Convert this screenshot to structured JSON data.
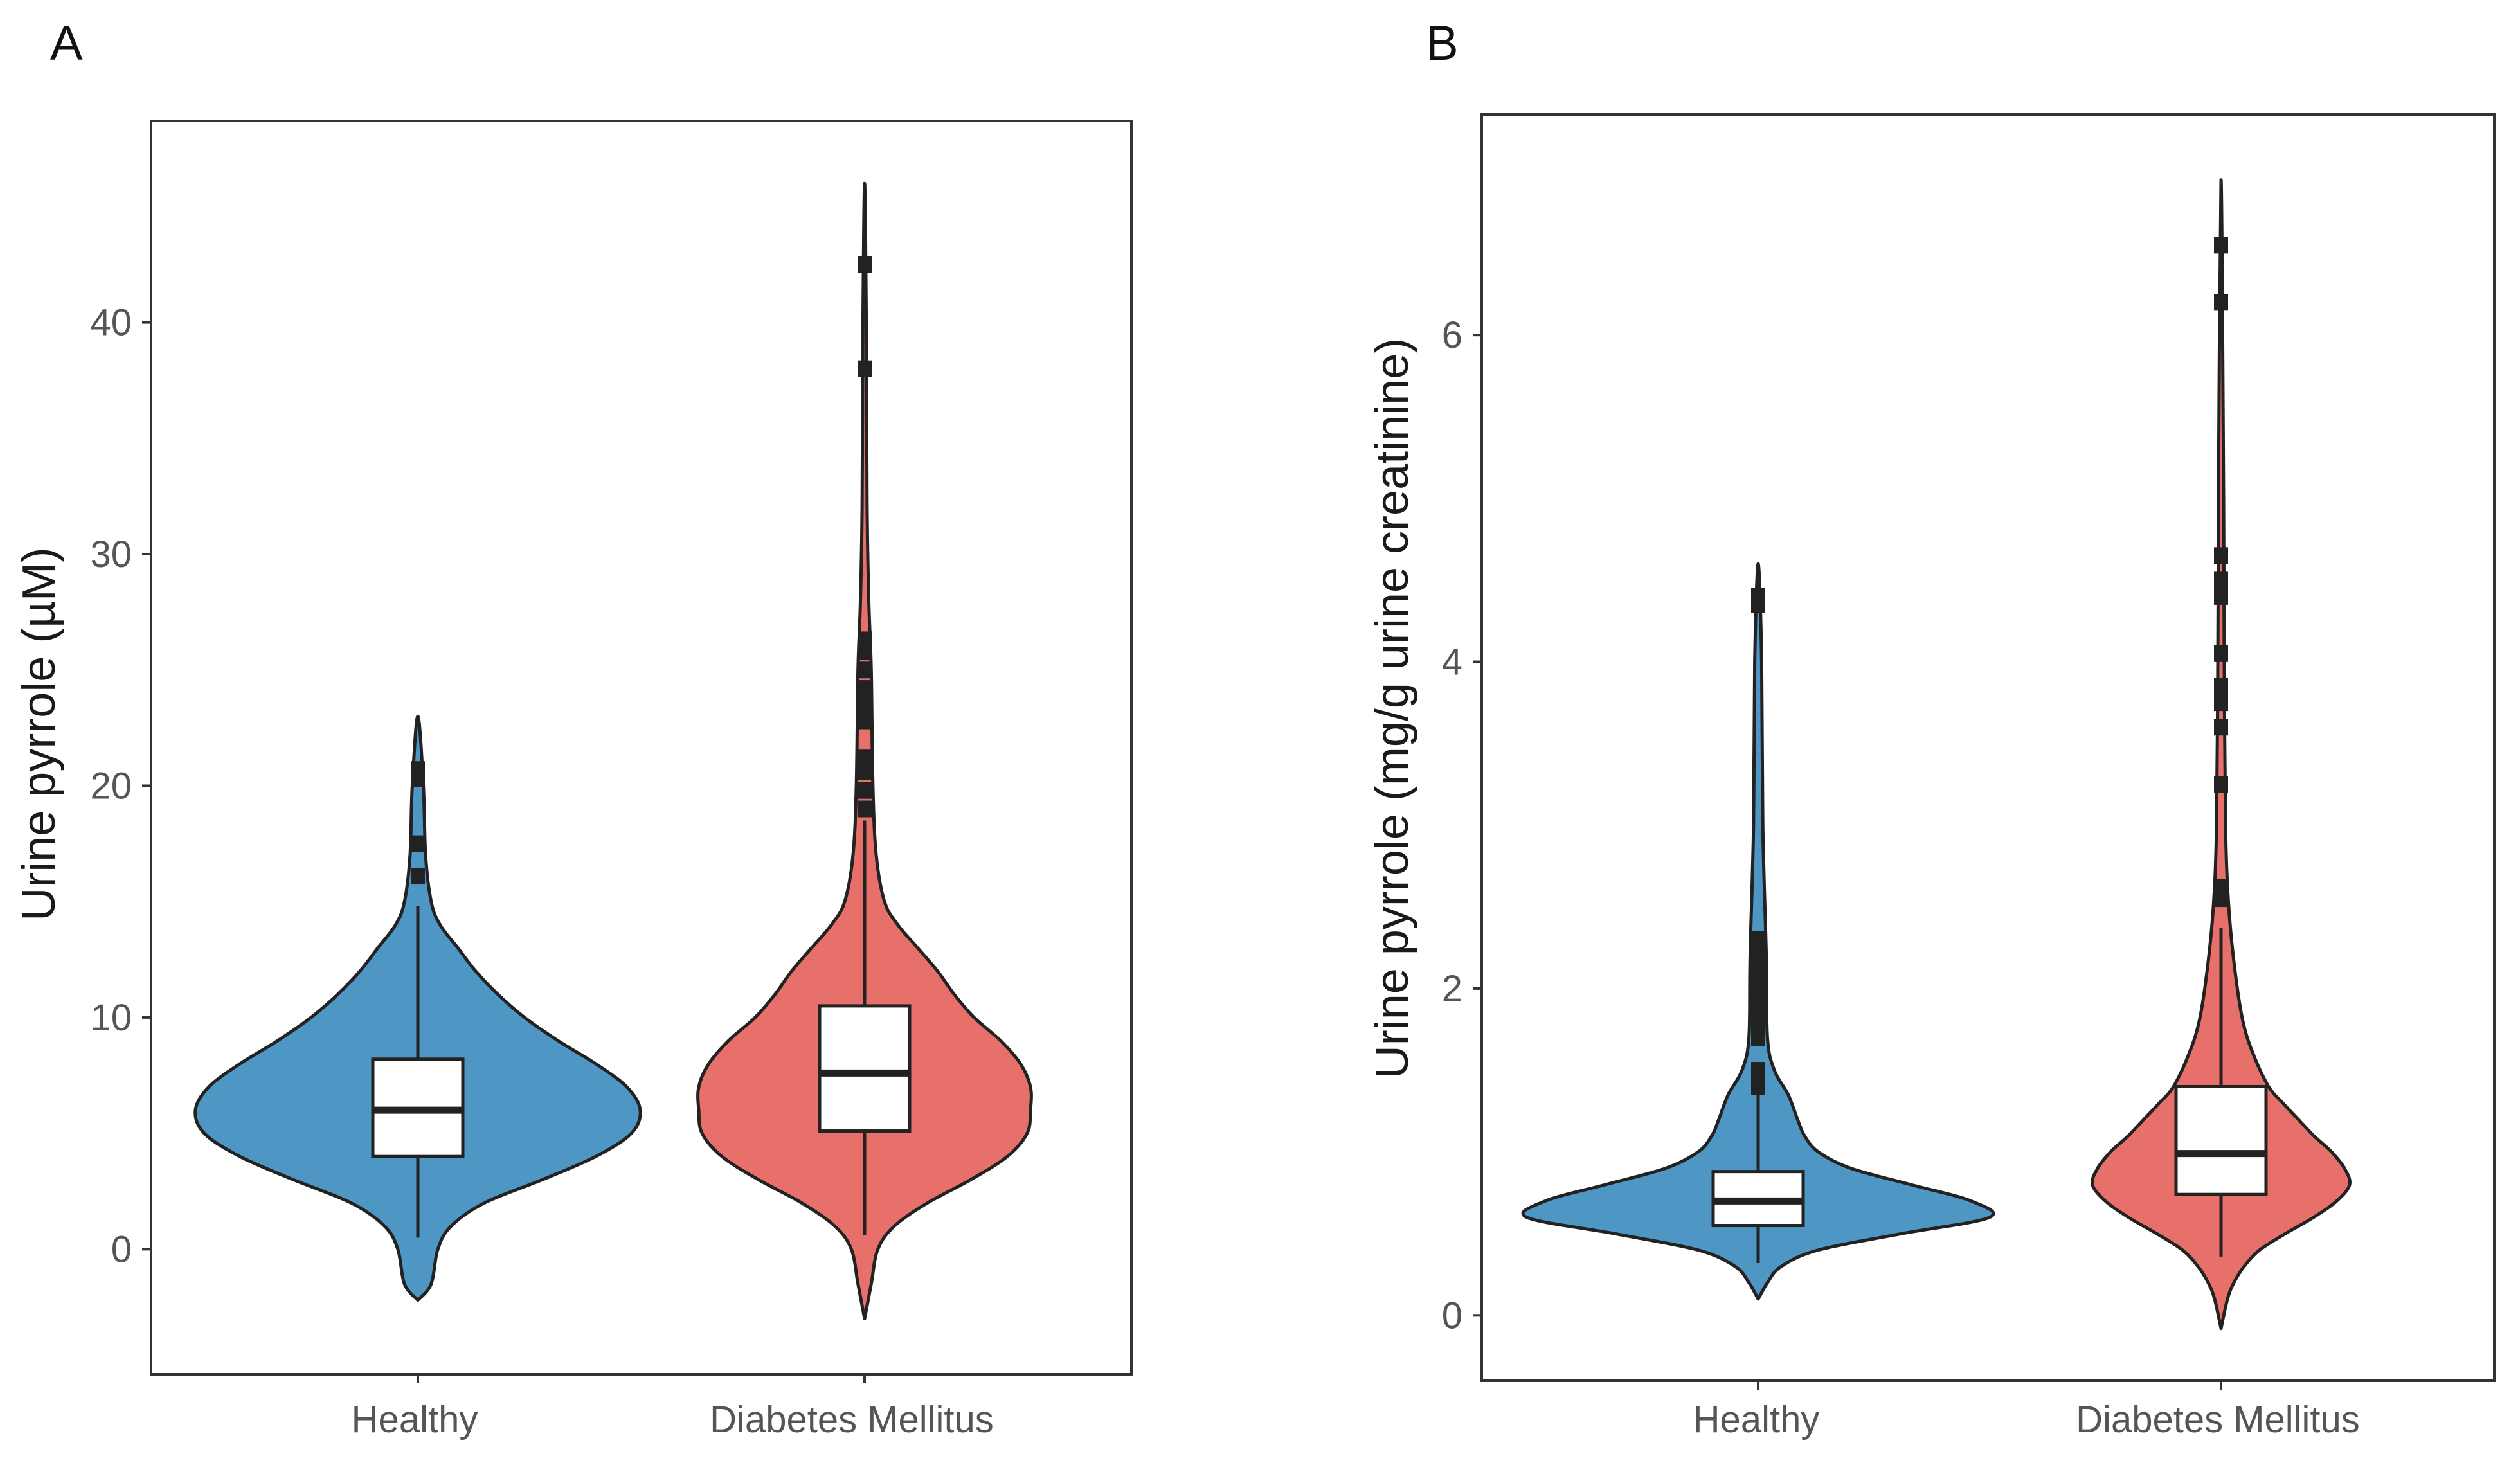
{
  "colors": {
    "healthy": "#4e96c3",
    "diabetes": "#e8706a",
    "outline": "#222222",
    "box_fill": "#ffffff"
  },
  "chart_data": [
    {
      "type": "violin",
      "panel_label": "A",
      "ylabel": "Urine pyrrole (µM)",
      "xlabel": "",
      "ylim": [
        -5.4,
        48.7
      ],
      "yticks": [
        0,
        10,
        20,
        30,
        40
      ],
      "ytick_labels": [
        "0",
        "10",
        "20",
        "30",
        "40"
      ],
      "categories": [
        "Healthy",
        "Diabetes Mellitus"
      ],
      "series": [
        {
          "name": "Healthy",
          "color": "#4e96c3",
          "min": -2.2,
          "max": 23.0,
          "density": [
            [
              -2.2,
              0.0
            ],
            [
              -1.5,
              0.06
            ],
            [
              0,
              0.09
            ],
            [
              1,
              0.15
            ],
            [
              2,
              0.3
            ],
            [
              3,
              0.56
            ],
            [
              4,
              0.8
            ],
            [
              5,
              0.96
            ],
            [
              6,
              1.0
            ],
            [
              7,
              0.94
            ],
            [
              8,
              0.8
            ],
            [
              9,
              0.63
            ],
            [
              10,
              0.48
            ],
            [
              11,
              0.36
            ],
            [
              12,
              0.26
            ],
            [
              13,
              0.18
            ],
            [
              14,
              0.1
            ],
            [
              15,
              0.06
            ],
            [
              17,
              0.035
            ],
            [
              20,
              0.025
            ],
            [
              23,
              0.0
            ]
          ],
          "box": {
            "q1": 4.0,
            "median": 6.0,
            "q3": 8.2,
            "whisker_low": 0.5,
            "whisker_high": 14.8
          },
          "outliers": [
            16.1,
            17.5,
            20.3,
            20.7
          ]
        },
        {
          "name": "Diabetes Mellitus",
          "color": "#e8706a",
          "min": -3.0,
          "max": 46.0,
          "density": [
            [
              -3,
              0.0
            ],
            [
              -1.5,
              0.04
            ],
            [
              0,
              0.08
            ],
            [
              1,
              0.18
            ],
            [
              2,
              0.38
            ],
            [
              3,
              0.64
            ],
            [
              4,
              0.86
            ],
            [
              5,
              0.98
            ],
            [
              6,
              1.0
            ],
            [
              7,
              1.0
            ],
            [
              8,
              0.94
            ],
            [
              9,
              0.82
            ],
            [
              10,
              0.66
            ],
            [
              11,
              0.54
            ],
            [
              12,
              0.44
            ],
            [
              13,
              0.32
            ],
            [
              14,
              0.2
            ],
            [
              15,
              0.12
            ],
            [
              17,
              0.07
            ],
            [
              20,
              0.05
            ],
            [
              25,
              0.04
            ],
            [
              28,
              0.025
            ],
            [
              32,
              0.015
            ],
            [
              40,
              0.01
            ],
            [
              46,
              0.0
            ]
          ],
          "box": {
            "q1": 5.1,
            "median": 7.6,
            "q3": 10.5,
            "whisker_low": 0.6,
            "whisker_high": 18.5
          },
          "outliers": [
            19.0,
            19.8,
            20.6,
            21.2,
            22.8,
            23.5,
            24.2,
            25.0,
            25.8,
            26.3,
            38.0,
            42.5
          ]
        }
      ]
    },
    {
      "type": "violin",
      "panel_label": "B",
      "ylabel": "Urine pyrrole (mg/g urine creatinine)",
      "xlabel": "",
      "ylim": [
        -0.4,
        7.35
      ],
      "yticks": [
        0,
        2,
        4,
        6
      ],
      "ytick_labels": [
        "0",
        "2",
        "4",
        "6"
      ],
      "categories": [
        "Healthy",
        "Diabetes Mellitus"
      ],
      "series": [
        {
          "name": "Healthy",
          "color": "#4e96c3",
          "min": 0.1,
          "max": 4.6,
          "density": [
            [
              0.1,
              0.0
            ],
            [
              0.2,
              0.04
            ],
            [
              0.3,
              0.1
            ],
            [
              0.4,
              0.26
            ],
            [
              0.5,
              0.62
            ],
            [
              0.6,
              1.0
            ],
            [
              0.7,
              0.92
            ],
            [
              0.8,
              0.66
            ],
            [
              0.9,
              0.4
            ],
            [
              1.0,
              0.26
            ],
            [
              1.1,
              0.2
            ],
            [
              1.2,
              0.17
            ],
            [
              1.35,
              0.13
            ],
            [
              1.5,
              0.07
            ],
            [
              1.7,
              0.04
            ],
            [
              2.2,
              0.035
            ],
            [
              3.0,
              0.02
            ],
            [
              4.0,
              0.015
            ],
            [
              4.6,
              0.0
            ]
          ],
          "box": {
            "q1": 0.55,
            "median": 0.7,
            "q3": 0.88,
            "whisker_low": 0.32,
            "whisker_high": 1.35
          },
          "outliers": [
            1.4,
            1.5,
            1.7,
            1.8,
            1.9,
            2.0,
            2.1,
            2.2,
            2.3,
            4.35,
            4.4
          ]
        },
        {
          "name": "Diabetes Mellitus",
          "color": "#e8706a",
          "min": -0.08,
          "max": 6.95,
          "density": [
            [
              -0.08,
              0.0
            ],
            [
              0.1,
              0.05
            ],
            [
              0.2,
              0.1
            ],
            [
              0.3,
              0.18
            ],
            [
              0.4,
              0.3
            ],
            [
              0.5,
              0.5
            ],
            [
              0.6,
              0.72
            ],
            [
              0.7,
              0.9
            ],
            [
              0.8,
              1.0
            ],
            [
              0.9,
              0.96
            ],
            [
              1.0,
              0.86
            ],
            [
              1.1,
              0.72
            ],
            [
              1.2,
              0.6
            ],
            [
              1.3,
              0.48
            ],
            [
              1.4,
              0.37
            ],
            [
              1.6,
              0.25
            ],
            [
              1.8,
              0.17
            ],
            [
              2.1,
              0.11
            ],
            [
              2.5,
              0.06
            ],
            [
              3.0,
              0.035
            ],
            [
              4.0,
              0.025
            ],
            [
              5.0,
              0.02
            ],
            [
              6.95,
              0.0
            ]
          ],
          "box": {
            "q1": 0.74,
            "median": 0.99,
            "q3": 1.4,
            "whisker_low": 0.36,
            "whisker_high": 2.37
          },
          "outliers": [
            2.55,
            2.62,
            3.25,
            3.6,
            3.75,
            3.85,
            4.05,
            4.4,
            4.5,
            4.65,
            6.2,
            6.55
          ]
        }
      ]
    }
  ]
}
